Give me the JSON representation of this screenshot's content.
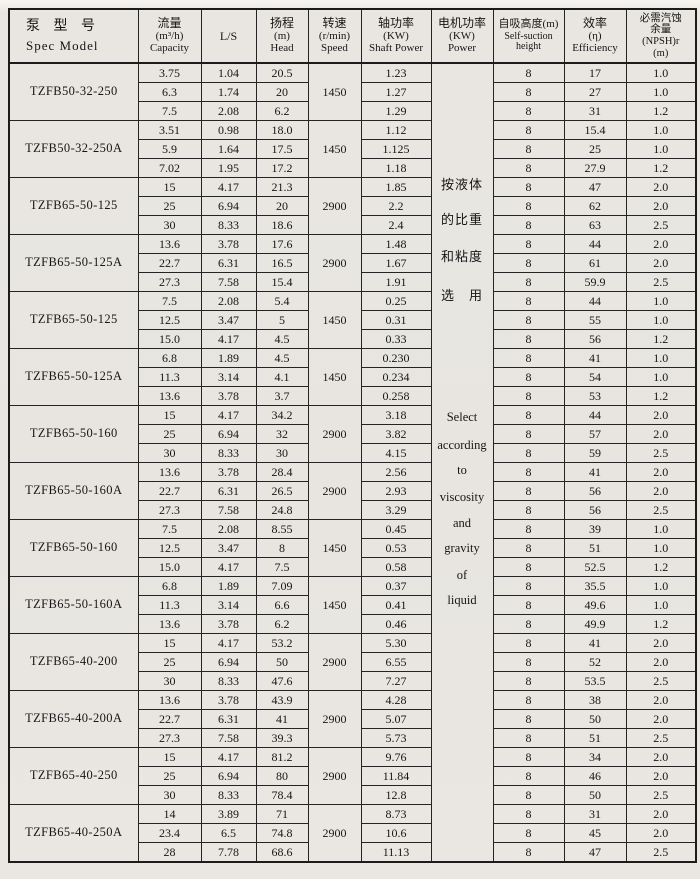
{
  "table": {
    "headers": {
      "model_cn": "泵 型 号",
      "model_en": "Spec Model",
      "capacity_cn": "流量",
      "capacity_unit": "(m³/h)",
      "capacity_en": "Capacity",
      "ls": "L/S",
      "head_cn": "扬程",
      "head_unit": "(m)",
      "head_en": "Head",
      "speed_cn": "转速",
      "speed_unit": "(r/min)",
      "speed_en": "Speed",
      "shaft_cn": "轴功率",
      "shaft_unit": "(KW)",
      "shaft_en": "Shaft Power",
      "power_cn": "电机功率",
      "power_unit": "(KW)",
      "power_en": "Power",
      "suction_cn": "自吸高度(m)",
      "suction_en": "Self-suction height",
      "eff_cn": "效率",
      "eff_unit": "(η)",
      "eff_en": "Efficiency",
      "npsh_cn": "必需汽蚀余量",
      "npsh_sub": "(NPSH)r",
      "npsh_unit": "(m)"
    },
    "power_note": [
      "按液体",
      "的比重",
      "和粘度",
      "选　用",
      "Select",
      "according",
      "to",
      "viscosity",
      "and",
      "gravity",
      "of",
      "liquid"
    ],
    "groups": [
      {
        "model": "TZFB50-32-250",
        "speed": "1450",
        "rows": [
          [
            "3.75",
            "1.04",
            "20.5",
            "1.23",
            "8",
            "17",
            "1.0"
          ],
          [
            "6.3",
            "1.74",
            "20",
            "1.27",
            "8",
            "27",
            "1.0"
          ],
          [
            "7.5",
            "2.08",
            "6.2",
            "1.29",
            "8",
            "31",
            "1.2"
          ]
        ]
      },
      {
        "model": "TZFB50-32-250A",
        "speed": "1450",
        "rows": [
          [
            "3.51",
            "0.98",
            "18.0",
            "1.12",
            "8",
            "15.4",
            "1.0"
          ],
          [
            "5.9",
            "1.64",
            "17.5",
            "1.125",
            "8",
            "25",
            "1.0"
          ],
          [
            "7.02",
            "1.95",
            "17.2",
            "1.18",
            "8",
            "27.9",
            "1.2"
          ]
        ]
      },
      {
        "model": "TZFB65-50-125",
        "speed": "2900",
        "rows": [
          [
            "15",
            "4.17",
            "21.3",
            "1.85",
            "8",
            "47",
            "2.0"
          ],
          [
            "25",
            "6.94",
            "20",
            "2.2",
            "8",
            "62",
            "2.0"
          ],
          [
            "30",
            "8.33",
            "18.6",
            "2.4",
            "8",
            "63",
            "2.5"
          ]
        ]
      },
      {
        "model": "TZFB65-50-125A",
        "speed": "2900",
        "rows": [
          [
            "13.6",
            "3.78",
            "17.6",
            "1.48",
            "8",
            "44",
            "2.0"
          ],
          [
            "22.7",
            "6.31",
            "16.5",
            "1.67",
            "8",
            "61",
            "2.0"
          ],
          [
            "27.3",
            "7.58",
            "15.4",
            "1.91",
            "8",
            "59.9",
            "2.5"
          ]
        ]
      },
      {
        "model": "TZFB65-50-125",
        "speed": "1450",
        "rows": [
          [
            "7.5",
            "2.08",
            "5.4",
            "0.25",
            "8",
            "44",
            "1.0"
          ],
          [
            "12.5",
            "3.47",
            "5",
            "0.31",
            "8",
            "55",
            "1.0"
          ],
          [
            "15.0",
            "4.17",
            "4.5",
            "0.33",
            "8",
            "56",
            "1.2"
          ]
        ]
      },
      {
        "model": "TZFB65-50-125A",
        "speed": "1450",
        "rows": [
          [
            "6.8",
            "1.89",
            "4.5",
            "0.230",
            "8",
            "41",
            "1.0"
          ],
          [
            "11.3",
            "3.14",
            "4.1",
            "0.234",
            "8",
            "54",
            "1.0"
          ],
          [
            "13.6",
            "3.78",
            "3.7",
            "0.258",
            "8",
            "53",
            "1.2"
          ]
        ]
      },
      {
        "model": "TZFB65-50-160",
        "speed": "2900",
        "rows": [
          [
            "15",
            "4.17",
            "34.2",
            "3.18",
            "8",
            "44",
            "2.0"
          ],
          [
            "25",
            "6.94",
            "32",
            "3.82",
            "8",
            "57",
            "2.0"
          ],
          [
            "30",
            "8.33",
            "30",
            "4.15",
            "8",
            "59",
            "2.5"
          ]
        ]
      },
      {
        "model": "TZFB65-50-160A",
        "speed": "2900",
        "rows": [
          [
            "13.6",
            "3.78",
            "28.4",
            "2.56",
            "8",
            "41",
            "2.0"
          ],
          [
            "22.7",
            "6.31",
            "26.5",
            "2.93",
            "8",
            "56",
            "2.0"
          ],
          [
            "27.3",
            "7.58",
            "24.8",
            "3.29",
            "8",
            "56",
            "2.5"
          ]
        ]
      },
      {
        "model": "TZFB65-50-160",
        "speed": "1450",
        "rows": [
          [
            "7.5",
            "2.08",
            "8.55",
            "0.45",
            "8",
            "39",
            "1.0"
          ],
          [
            "12.5",
            "3.47",
            "8",
            "0.53",
            "8",
            "51",
            "1.0"
          ],
          [
            "15.0",
            "4.17",
            "7.5",
            "0.58",
            "8",
            "52.5",
            "1.2"
          ]
        ]
      },
      {
        "model": "TZFB65-50-160A",
        "speed": "1450",
        "rows": [
          [
            "6.8",
            "1.89",
            "7.09",
            "0.37",
            "8",
            "35.5",
            "1.0"
          ],
          [
            "11.3",
            "3.14",
            "6.6",
            "0.41",
            "8",
            "49.6",
            "1.0"
          ],
          [
            "13.6",
            "3.78",
            "6.2",
            "0.46",
            "8",
            "49.9",
            "1.2"
          ]
        ]
      },
      {
        "model": "TZFB65-40-200",
        "speed": "2900",
        "rows": [
          [
            "15",
            "4.17",
            "53.2",
            "5.30",
            "8",
            "41",
            "2.0"
          ],
          [
            "25",
            "6.94",
            "50",
            "6.55",
            "8",
            "52",
            "2.0"
          ],
          [
            "30",
            "8.33",
            "47.6",
            "7.27",
            "8",
            "53.5",
            "2.5"
          ]
        ]
      },
      {
        "model": "TZFB65-40-200A",
        "speed": "2900",
        "rows": [
          [
            "13.6",
            "3.78",
            "43.9",
            "4.28",
            "8",
            "38",
            "2.0"
          ],
          [
            "22.7",
            "6.31",
            "41",
            "5.07",
            "8",
            "50",
            "2.0"
          ],
          [
            "27.3",
            "7.58",
            "39.3",
            "5.73",
            "8",
            "51",
            "2.5"
          ]
        ]
      },
      {
        "model": "TZFB65-40-250",
        "speed": "2900",
        "rows": [
          [
            "15",
            "4.17",
            "81.2",
            "9.76",
            "8",
            "34",
            "2.0"
          ],
          [
            "25",
            "6.94",
            "80",
            "11.84",
            "8",
            "46",
            "2.0"
          ],
          [
            "30",
            "8.33",
            "78.4",
            "12.8",
            "8",
            "50",
            "2.5"
          ]
        ]
      },
      {
        "model": "TZFB65-40-250A",
        "speed": "2900",
        "rows": [
          [
            "14",
            "3.89",
            "71",
            "8.73",
            "8",
            "31",
            "2.0"
          ],
          [
            "23.4",
            "6.5",
            "74.8",
            "10.6",
            "8",
            "45",
            "2.0"
          ],
          [
            "28",
            "7.78",
            "68.6",
            "11.13",
            "8",
            "47",
            "2.5"
          ]
        ]
      }
    ]
  }
}
